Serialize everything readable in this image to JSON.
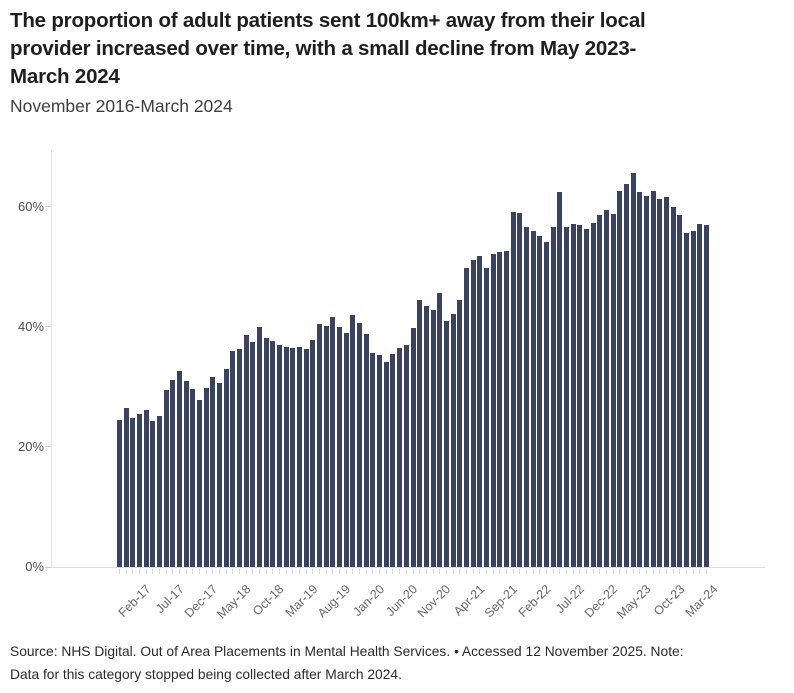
{
  "header": {
    "title_lines": [
      "The proportion of adult patients sent 100km+ away from their local",
      "provider increased over time, with a small decline from May 2023-",
      "March 2024"
    ],
    "subtitle": "November 2016-March 2024"
  },
  "footer": {
    "source_lines": [
      "Source: NHS Digital. Out of Area Placements in Mental Health Services. • Accessed 12 November 2025. Note:",
      "Data for this category stopped being collected after March 2024."
    ]
  },
  "chart_data": {
    "type": "bar",
    "title": "The proportion of adult patients sent 100km+ away from their local provider increased over time, with a small decline from May 2023-March 2024",
    "subtitle": "November 2016-March 2024",
    "unit": "%",
    "bar_color": "#3a4262",
    "grid": false,
    "legend": "none",
    "ylim": [
      0,
      68
    ],
    "y_ticks": [
      0,
      20,
      40,
      60
    ],
    "y_tick_labels": [
      "0%",
      "20%",
      "40%",
      "60%"
    ],
    "x_tick_labels": [
      "Feb-17",
      "Jul-17",
      "Dec-17",
      "May-18",
      "Oct-18",
      "Mar-19",
      "Aug-19",
      "Jan-20",
      "Jun-20",
      "Nov-20",
      "Apr-21",
      "Sep-21",
      "Feb-22",
      "Jul-22",
      "Dec-22",
      "May-23",
      "Oct-23",
      "Mar-24"
    ],
    "categories": [
      "Nov-16",
      "Dec-16",
      "Jan-17",
      "Feb-17",
      "Mar-17",
      "Apr-17",
      "May-17",
      "Jun-17",
      "Jul-17",
      "Aug-17",
      "Sep-17",
      "Oct-17",
      "Nov-17",
      "Dec-17",
      "Jan-18",
      "Feb-18",
      "Mar-18",
      "Apr-18",
      "May-18",
      "Jun-18",
      "Jul-18",
      "Aug-18",
      "Sep-18",
      "Oct-18",
      "Nov-18",
      "Dec-18",
      "Jan-19",
      "Feb-19",
      "Mar-19",
      "Apr-19",
      "May-19",
      "Jun-19",
      "Jul-19",
      "Aug-19",
      "Sep-19",
      "Oct-19",
      "Nov-19",
      "Dec-19",
      "Jan-20",
      "Feb-20",
      "Mar-20",
      "Apr-20",
      "May-20",
      "Jun-20",
      "Jul-20",
      "Aug-20",
      "Sep-20",
      "Oct-20",
      "Nov-20",
      "Dec-20",
      "Jan-21",
      "Feb-21",
      "Mar-21",
      "Apr-21",
      "May-21",
      "Jun-21",
      "Jul-21",
      "Aug-21",
      "Sep-21",
      "Oct-21",
      "Nov-21",
      "Dec-21",
      "Jan-22",
      "Feb-22",
      "Mar-22",
      "Apr-22",
      "May-22",
      "Jun-22",
      "Jul-22",
      "Aug-22",
      "Sep-22",
      "Oct-22",
      "Nov-22",
      "Dec-22",
      "Jan-23",
      "Feb-23",
      "Mar-23",
      "Apr-23",
      "May-23",
      "Jun-23",
      "Jul-23",
      "Aug-23",
      "Sep-23",
      "Oct-23",
      "Nov-23",
      "Dec-23",
      "Jan-24",
      "Feb-24",
      "Mar-24"
    ],
    "values": [
      24.4,
      26.5,
      24.8,
      25.4,
      26.1,
      24.3,
      25.1,
      29.5,
      31.2,
      32.7,
      30.9,
      29.6,
      27.8,
      29.8,
      31.6,
      30.7,
      32.9,
      36.0,
      36.3,
      38.7,
      37.4,
      40.0,
      38.2,
      37.6,
      36.9,
      36.6,
      36.4,
      36.6,
      36.3,
      37.8,
      40.4,
      40.1,
      41.6,
      39.9,
      38.9,
      42.0,
      40.6,
      38.8,
      35.6,
      35.3,
      34.1,
      35.5,
      36.4,
      36.9,
      39.8,
      44.5,
      43.5,
      42.8,
      45.7,
      40.9,
      42.1,
      44.4,
      49.8,
      51.2,
      51.8,
      49.8,
      52.2,
      52.4,
      52.6,
      59.2,
      58.9,
      56.6,
      55.9,
      55.2,
      54.2,
      56.6,
      62.5,
      56.6,
      57.1,
      57.0,
      56.3,
      57.3,
      58.7,
      59.4,
      58.8,
      62.6,
      63.7,
      65.6,
      62.4,
      61.8,
      62.6,
      61.3,
      61.6,
      59.9,
      58.7,
      55.6,
      56.0,
      57.2,
      56.9
    ]
  }
}
